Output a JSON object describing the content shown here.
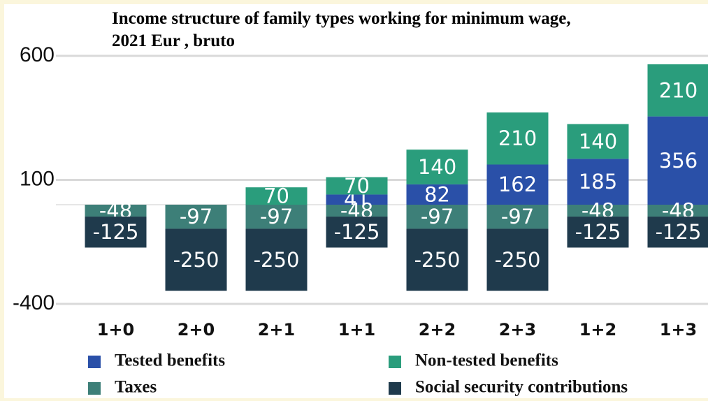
{
  "chart_data": {
    "type": "stacked_bar",
    "title": [
      "Income structure of family types working for minimum wage,",
      "2021  Eur , bruto"
    ],
    "categories": [
      "1+0",
      "2+0",
      "2+1",
      "1+1",
      "2+2",
      "2+3",
      "1+2",
      "1+3"
    ],
    "series": [
      {
        "name": "Tested benefits",
        "color": "#2a50a8",
        "values": [
          null,
          null,
          null,
          41,
          82,
          162,
          185,
          356
        ]
      },
      {
        "name": "Non-tested benefits",
        "color": "#2a9d7c",
        "values": [
          null,
          null,
          70,
          70,
          140,
          210,
          140,
          210
        ]
      },
      {
        "name": "Taxes",
        "color": "#3d7f78",
        "values": [
          -48,
          -97,
          -97,
          -48,
          -97,
          -97,
          -48,
          -48
        ]
      },
      {
        "name": "Social security contributions",
        "color": "#1f3a4c",
        "values": [
          -125,
          -250,
          -250,
          -125,
          -250,
          -250,
          -125,
          -125
        ]
      }
    ],
    "ylim": [
      -400,
      600
    ],
    "yticks": [
      -400,
      100,
      600
    ],
    "grid": true
  }
}
